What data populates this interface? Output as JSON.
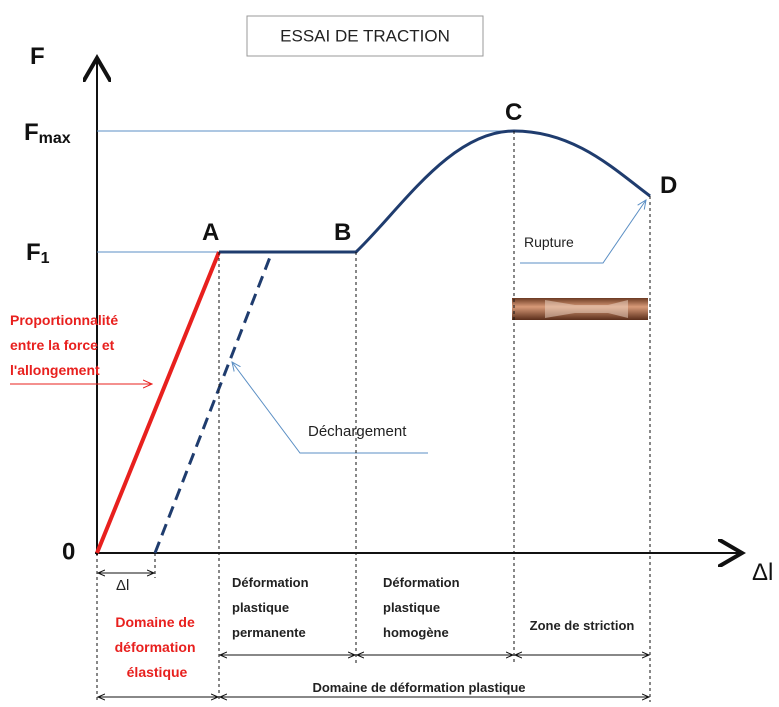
{
  "title": "ESSAI DE TRACTION",
  "axes": {
    "y": "F",
    "x": "Δl",
    "origin": "0"
  },
  "levels": [
    {
      "main": "F",
      "sub": "max"
    },
    {
      "main": "F",
      "sub": "1"
    }
  ],
  "points": [
    "A",
    "B",
    "C",
    "D"
  ],
  "annotations": {
    "proportionality": [
      "Proportionnalité",
      "entre  la force et",
      "l'allongement"
    ],
    "unloading": "Déchargement",
    "rupture": "Rupture",
    "delta_l": "Δl"
  },
  "zones": {
    "elastic": [
      "Domaine de",
      "déformation",
      "élastique"
    ],
    "permanent": [
      "Déformation",
      "plastique",
      "permanente"
    ],
    "homogeneous": [
      "Déformation",
      "plastique",
      "homogène"
    ],
    "necking": "Zone de striction",
    "plastic": "Domaine de déformation plastique"
  }
}
